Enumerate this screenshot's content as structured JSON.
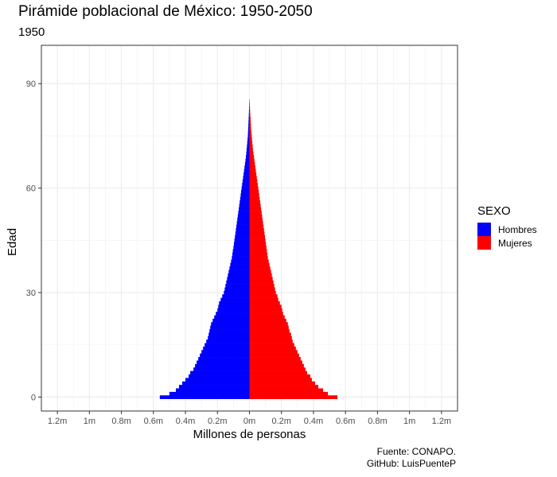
{
  "chart_data": {
    "type": "bar",
    "orientation": "horizontal-pyramid",
    "title": "Pirámide poblacional de México: 1950-2050",
    "subtitle": "1950",
    "xlabel": "Millones de personas",
    "ylabel": "Edad",
    "xlim": [
      -1.3,
      1.3
    ],
    "ylim": [
      -4,
      101
    ],
    "x_ticks": [
      -1.2,
      -1.0,
      -0.8,
      -0.6,
      -0.4,
      -0.2,
      0,
      0.2,
      0.4,
      0.6,
      0.8,
      1.0,
      1.2
    ],
    "x_tick_labels": [
      "1.2m",
      "1m",
      "0.8m",
      "0.6m",
      "0.4m",
      "0.2m",
      "0m",
      "0.2m",
      "0.4m",
      "0.6m",
      "0.8m",
      "1m",
      "1.2m"
    ],
    "y_ticks": [
      0,
      30,
      60,
      90
    ],
    "y_tick_labels": [
      "0",
      "30",
      "60",
      "90"
    ],
    "grid": true,
    "legend_placement": "right",
    "legend_title": "SEXO",
    "series": [
      {
        "name": "Hombres",
        "color": "#0000FF",
        "ages": [
          0,
          1,
          2,
          3,
          4,
          5,
          6,
          7,
          8,
          9,
          10,
          11,
          12,
          13,
          14,
          15,
          16,
          17,
          18,
          19,
          20,
          21,
          22,
          23,
          24,
          25,
          26,
          27,
          28,
          29,
          30,
          31,
          32,
          33,
          34,
          35,
          36,
          37,
          38,
          39,
          40,
          41,
          42,
          43,
          44,
          45,
          46,
          47,
          48,
          49,
          50,
          51,
          52,
          53,
          54,
          55,
          56,
          57,
          58,
          59,
          60,
          61,
          62,
          63,
          64,
          65,
          66,
          67,
          68,
          69,
          70,
          71,
          72,
          73,
          74,
          75,
          76,
          77,
          78,
          79,
          80,
          81,
          82,
          83,
          84,
          85
        ],
        "values": [
          0.56,
          0.5,
          0.46,
          0.44,
          0.42,
          0.4,
          0.38,
          0.37,
          0.35,
          0.34,
          0.33,
          0.32,
          0.31,
          0.3,
          0.29,
          0.28,
          0.27,
          0.26,
          0.255,
          0.25,
          0.245,
          0.24,
          0.23,
          0.22,
          0.21,
          0.2,
          0.195,
          0.19,
          0.18,
          0.17,
          0.16,
          0.155,
          0.15,
          0.145,
          0.14,
          0.135,
          0.13,
          0.125,
          0.12,
          0.115,
          0.11,
          0.107,
          0.104,
          0.1,
          0.097,
          0.094,
          0.091,
          0.088,
          0.085,
          0.082,
          0.079,
          0.076,
          0.073,
          0.07,
          0.067,
          0.064,
          0.061,
          0.058,
          0.055,
          0.052,
          0.049,
          0.046,
          0.043,
          0.04,
          0.037,
          0.034,
          0.031,
          0.028,
          0.025,
          0.022,
          0.02,
          0.018,
          0.016,
          0.014,
          0.012,
          0.01,
          0.009,
          0.008,
          0.007,
          0.006,
          0.005,
          0.004,
          0.003,
          0.002,
          0.0015,
          0.001
        ]
      },
      {
        "name": "Mujeres",
        "color": "#FF0000",
        "ages": [
          0,
          1,
          2,
          3,
          4,
          5,
          6,
          7,
          8,
          9,
          10,
          11,
          12,
          13,
          14,
          15,
          16,
          17,
          18,
          19,
          20,
          21,
          22,
          23,
          24,
          25,
          26,
          27,
          28,
          29,
          30,
          31,
          32,
          33,
          34,
          35,
          36,
          37,
          38,
          39,
          40,
          41,
          42,
          43,
          44,
          45,
          46,
          47,
          48,
          49,
          50,
          51,
          52,
          53,
          54,
          55,
          56,
          57,
          58,
          59,
          60,
          61,
          62,
          63,
          64,
          65,
          66,
          67,
          68,
          69,
          70,
          71,
          72,
          73,
          74,
          75,
          76,
          77,
          78,
          79,
          80,
          81,
          82,
          83,
          84,
          85
        ],
        "values": [
          0.55,
          0.49,
          0.46,
          0.43,
          0.41,
          0.39,
          0.38,
          0.36,
          0.35,
          0.34,
          0.33,
          0.32,
          0.31,
          0.3,
          0.29,
          0.28,
          0.27,
          0.265,
          0.26,
          0.25,
          0.245,
          0.24,
          0.23,
          0.22,
          0.21,
          0.205,
          0.2,
          0.19,
          0.18,
          0.175,
          0.165,
          0.16,
          0.155,
          0.15,
          0.145,
          0.14,
          0.135,
          0.13,
          0.125,
          0.12,
          0.115,
          0.112,
          0.109,
          0.106,
          0.103,
          0.1,
          0.097,
          0.094,
          0.091,
          0.088,
          0.085,
          0.082,
          0.079,
          0.076,
          0.073,
          0.07,
          0.067,
          0.064,
          0.061,
          0.058,
          0.055,
          0.052,
          0.049,
          0.046,
          0.043,
          0.04,
          0.037,
          0.034,
          0.031,
          0.028,
          0.025,
          0.022,
          0.02,
          0.018,
          0.016,
          0.014,
          0.012,
          0.01,
          0.009,
          0.008,
          0.007,
          0.005,
          0.004,
          0.003,
          0.002,
          0.001
        ]
      }
    ],
    "annotations": [
      "Fuente: CONAPO.",
      "GitHub: LuisPuenteP"
    ]
  }
}
